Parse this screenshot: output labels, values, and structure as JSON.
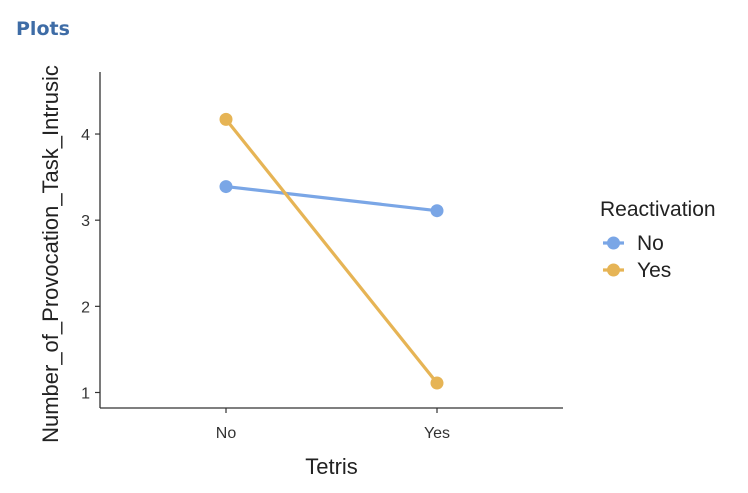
{
  "header": {
    "title": "Plots"
  },
  "chart_data": {
    "type": "line",
    "categories": [
      "No",
      "Yes"
    ],
    "xlabel": "Tetris",
    "ylabel": "Number_of_Provocation_Task_Intrusic",
    "ylim": [
      0.82,
      4.72
    ],
    "yticks": [
      1,
      2,
      3,
      4
    ],
    "grid": false,
    "legend": {
      "title": "Reactivation",
      "placement": "right"
    },
    "series": [
      {
        "name": "No",
        "color": "#7aa6e6",
        "values": [
          3.39,
          3.11
        ]
      },
      {
        "name": "Yes",
        "color": "#e6b455",
        "values": [
          4.17,
          1.11
        ]
      }
    ]
  }
}
